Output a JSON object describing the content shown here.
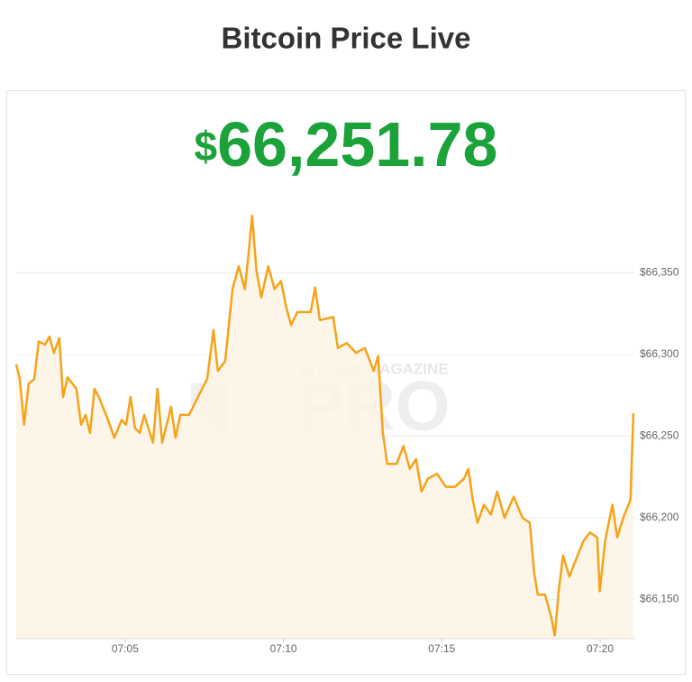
{
  "chart_data": {
    "type": "line",
    "title": "Bitcoin Price Live",
    "price": {
      "currency": "$",
      "amount": "66,251.78"
    },
    "watermark": {
      "top": "BITCOIN MAGAZINE",
      "main": "PRO"
    },
    "color": "#f5a31a",
    "fill_color": "#fdf3e3",
    "price_color": "#1ba33a",
    "grid": true,
    "x": [
      421.56,
      421.67,
      421.81,
      421.95,
      422.13,
      422.27,
      422.47,
      422.61,
      422.75,
      422.92,
      423.04,
      423.18,
      423.46,
      423.61,
      423.75,
      423.89,
      424.03,
      424.17,
      424.46,
      424.66,
      424.89,
      425.03,
      425.17,
      425.31,
      425.46,
      425.6,
      425.88,
      426.02,
      426.17,
      426.45,
      426.59,
      426.74,
      427.02,
      427.3,
      427.59,
      427.79,
      427.93,
      428.16,
      428.39,
      428.59,
      428.78,
      428.9,
      429.01,
      429.15,
      429.3,
      429.52,
      429.72,
      429.92,
      430.09,
      430.24,
      430.44,
      430.86,
      431.0,
      431.15,
      431.57,
      431.72,
      432.0,
      432.29,
      432.57,
      432.85,
      432.99,
      433.14,
      433.28,
      433.57,
      433.79,
      433.99,
      434.19,
      434.36,
      434.56,
      434.85,
      435.13,
      435.42,
      435.7,
      435.84,
      435.98,
      436.13,
      436.33,
      436.55,
      436.75,
      436.98,
      437.27,
      437.55,
      437.78,
      437.92,
      438.03,
      438.26,
      438.46,
      438.57,
      438.69,
      438.83,
      439.03,
      439.25,
      439.48,
      439.68,
      439.91,
      439.99,
      440.16,
      440.39,
      440.54,
      440.73,
      440.96,
      441.05
    ],
    "values": [
      66294,
      66285,
      66257,
      66282,
      66285,
      66308,
      66306,
      66311,
      66301,
      66310,
      66274,
      66286,
      66279,
      66257,
      66263,
      66252,
      66279,
      66274,
      66260,
      66249,
      66260,
      66257,
      66274,
      66255,
      66252,
      66263,
      66246,
      66279,
      66246,
      66268,
      66249,
      66263,
      66263,
      66274,
      66285,
      66315,
      66290,
      66296,
      66340,
      66354,
      66340,
      66362,
      66385,
      66351,
      66335,
      66354,
      66340,
      66345,
      66329,
      66318,
      66326,
      66326,
      66341,
      66321,
      66323,
      66304,
      66307,
      66301,
      66304,
      66290,
      66299,
      66252,
      66233,
      66233,
      66244,
      66230,
      66236,
      66216,
      66224,
      66227,
      66219,
      66219,
      66224,
      66230,
      66211,
      66197,
      66208,
      66202,
      66216,
      66200,
      66213,
      66200,
      66197,
      66166,
      66153,
      66153,
      66139,
      66128,
      66155,
      66177,
      66164,
      66175,
      66186,
      66191,
      66188,
      66155,
      66186,
      66208,
      66188,
      66200,
      66211,
      66264
    ],
    "xlim": [
      421.56,
      441.11
    ],
    "xticks": [
      {
        "value": 425,
        "label": "07:05"
      },
      {
        "value": 430,
        "label": "07:10"
      },
      {
        "value": 435,
        "label": "07:15"
      },
      {
        "value": 440,
        "label": "07:20"
      }
    ],
    "ylim": [
      66126,
      66390
    ],
    "yticks": [
      {
        "value": 66150,
        "label": "$66,150"
      },
      {
        "value": 66200,
        "label": "$66,200"
      },
      {
        "value": 66250,
        "label": "$66,250"
      },
      {
        "value": 66300,
        "label": "$66,300"
      },
      {
        "value": 66350,
        "label": "$66,350"
      }
    ]
  }
}
